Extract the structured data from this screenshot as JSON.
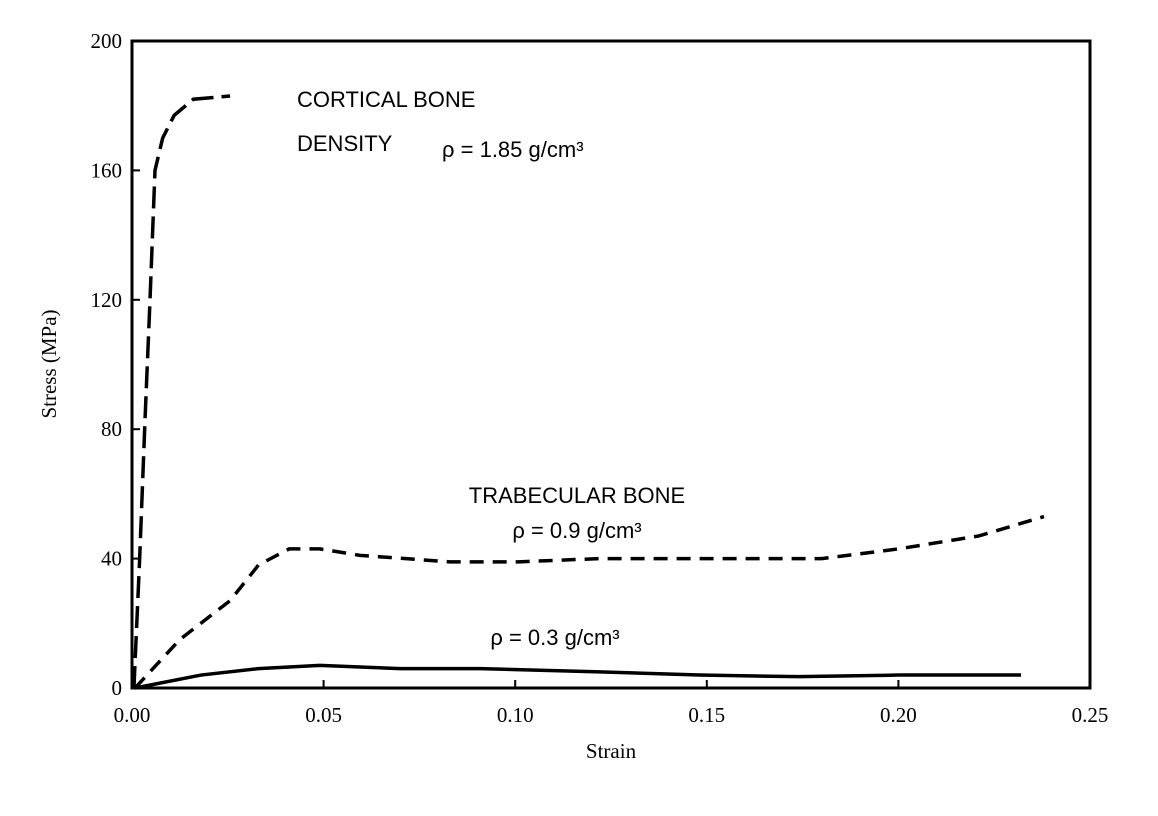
{
  "chart_data": {
    "type": "line",
    "xlabel": "Strain",
    "ylabel": "Stress (MPa)",
    "xlim": [
      0,
      0.25
    ],
    "xticks": [
      {
        "value": 0,
        "label": "0.00"
      },
      0.05,
      {
        "value": 0.1,
        "label": "0.10"
      },
      0.15,
      {
        "value": 0.2,
        "label": "0.20"
      },
      0.25
    ],
    "ylim": [
      0,
      200
    ],
    "yticks": [
      0,
      40,
      80,
      120,
      160,
      200
    ],
    "annotations": [
      "CORTICAL BONE",
      "DENSITY",
      "ρ = 1.85 g/cm³",
      "TRABECULAR BONE",
      "ρ = 0.9 g/cm³",
      "ρ = 0.3 g/cm³"
    ],
    "series": [
      {
        "color": "#000000",
        "dash": "long",
        "x": [
          0.0005,
          0.002,
          0.0034,
          0.0047,
          0.006,
          0.008,
          0.011,
          0.016,
          0.0256
        ],
        "values": [
          0,
          40,
          83,
          120,
          160,
          170,
          177,
          182,
          183
        ]
      },
      {
        "color": "#000000",
        "dash": "short",
        "x": [
          0.0008,
          0.0125,
          0.0256,
          0.033,
          0.041,
          0.049,
          0.0595,
          0.083,
          0.101,
          0.122,
          0.148,
          0.18,
          0.2,
          0.221,
          0.238
        ],
        "values": [
          0,
          15,
          27,
          38,
          43,
          43,
          41,
          39,
          39,
          40,
          40,
          40,
          43,
          47,
          53
        ]
      },
      {
        "color": "#000000",
        "dash": "solid",
        "x": [
          0.0008,
          0.018,
          0.033,
          0.049,
          0.07,
          0.091,
          0.122,
          0.148,
          0.174,
          0.2,
          0.232
        ],
        "values": [
          0,
          4,
          6,
          7,
          6,
          6,
          5,
          4,
          3.5,
          4,
          4
        ]
      }
    ]
  }
}
